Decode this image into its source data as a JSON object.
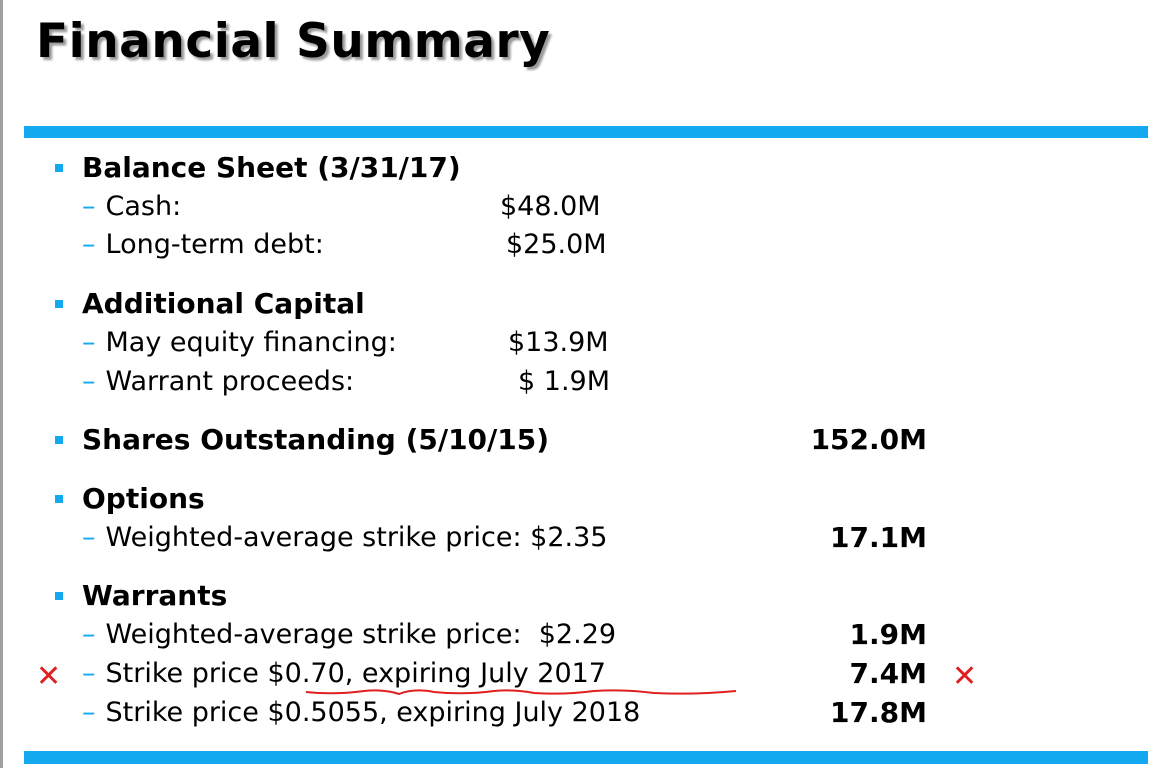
{
  "title": "Financial Summary",
  "colors": {
    "accent": "#12a9f0",
    "annotation": "#e02020"
  },
  "sections": {
    "balance": {
      "heading": "Balance Sheet (3/31/17)",
      "items": [
        {
          "label": "Cash:",
          "value": "$48.0M"
        },
        {
          "label": "Long-term debt:",
          "value": "$25.0M"
        }
      ]
    },
    "capital": {
      "heading": "Additional Capital",
      "items": [
        {
          "label": "May equity financing:",
          "value": "$13.9M"
        },
        {
          "label": "Warrant proceeds:",
          "value": "$ 1.9M"
        }
      ]
    },
    "shares": {
      "heading": "Shares Outstanding (5/10/15)",
      "amount": "152.0M"
    },
    "options": {
      "heading": "Options",
      "items": [
        {
          "label": "Weighted-average strike price: $2.35",
          "amount": "17.1M"
        }
      ]
    },
    "warrants": {
      "heading": "Warrants",
      "items": [
        {
          "label": "Weighted-average strike price:  $2.29",
          "amount": "1.9M"
        },
        {
          "label": "Strike price $0.70, expiring July 2017",
          "amount": "7.4M"
        },
        {
          "label": "Strike price $0.5055, expiring July 2018",
          "amount": "17.8M"
        }
      ]
    }
  },
  "dash": "–",
  "annotation_mark": "✕"
}
